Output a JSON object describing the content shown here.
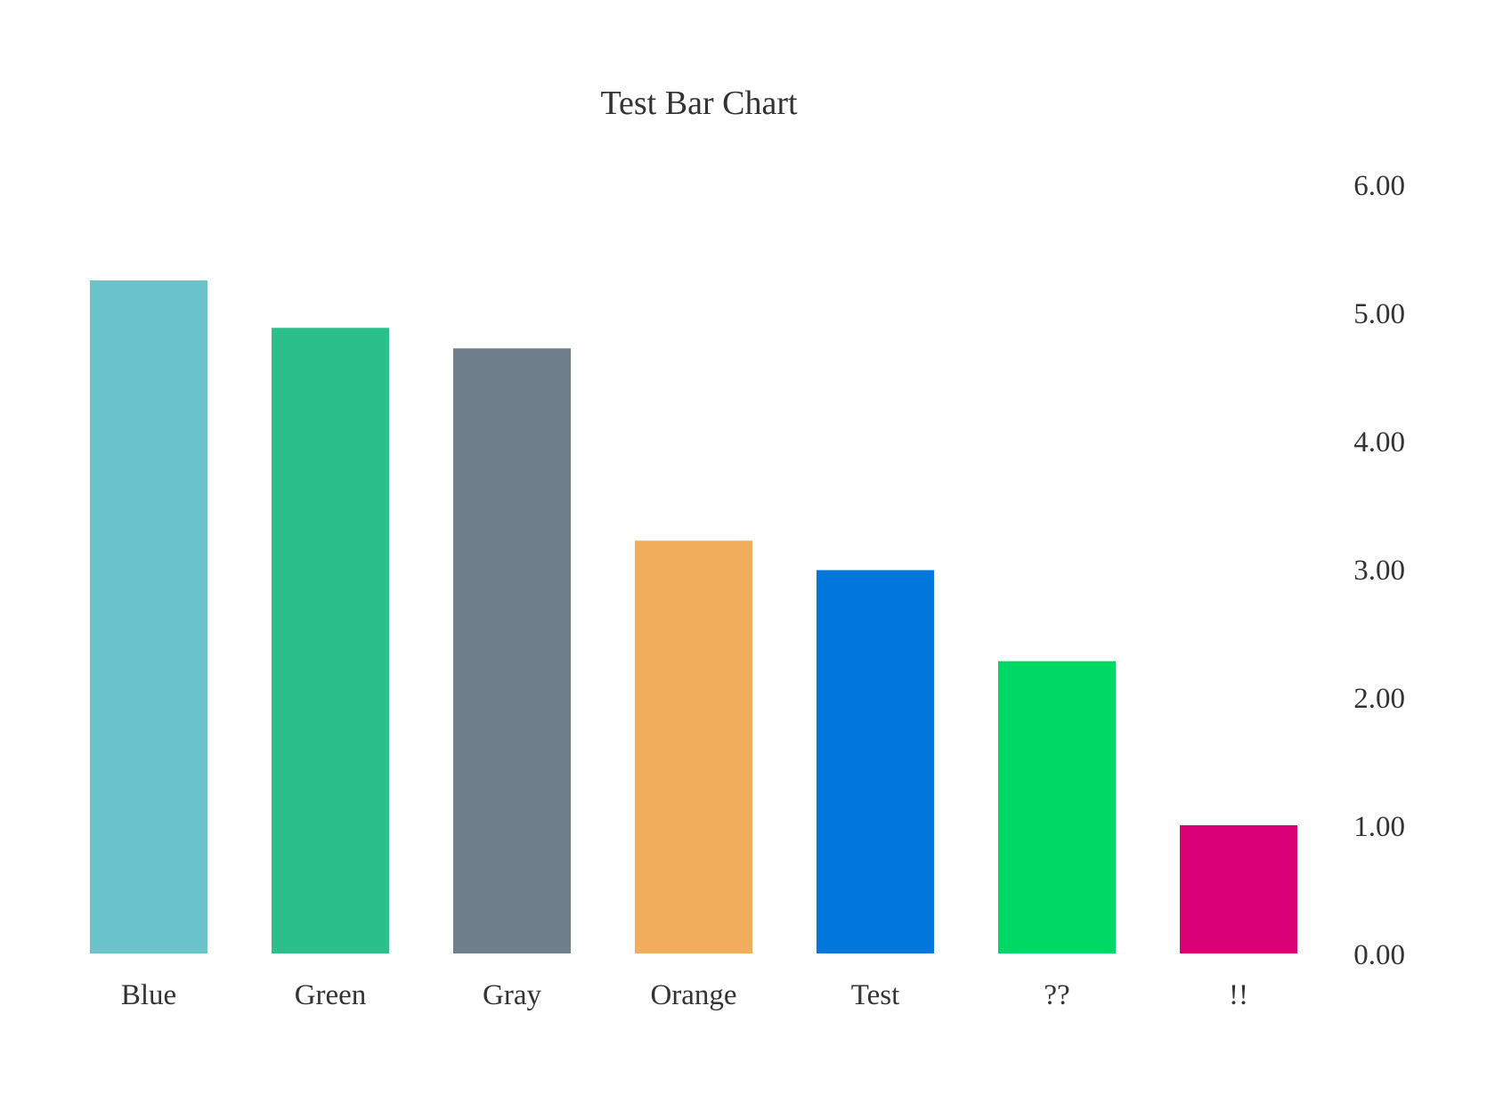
{
  "chart_data": {
    "type": "bar",
    "title": "Test Bar Chart",
    "xlabel": "",
    "ylabel": "",
    "categories": [
      "Blue",
      "Green",
      "Gray",
      "Orange",
      "Test",
      "??",
      "!!"
    ],
    "values": [
      5.25,
      4.88,
      4.72,
      3.22,
      2.99,
      2.28,
      1.0
    ],
    "colors": [
      "#6ac3ca",
      "#2bc08a",
      "#6e7f8b",
      "#f0ad5c",
      "#0077dc",
      "#00d865",
      "#d80074"
    ],
    "ylim": [
      0,
      6
    ],
    "yticks": [
      "0.00",
      "1.00",
      "2.00",
      "3.00",
      "4.00",
      "5.00",
      "6.00"
    ],
    "y_axis_position": "right",
    "grid": false,
    "legend": "none"
  }
}
